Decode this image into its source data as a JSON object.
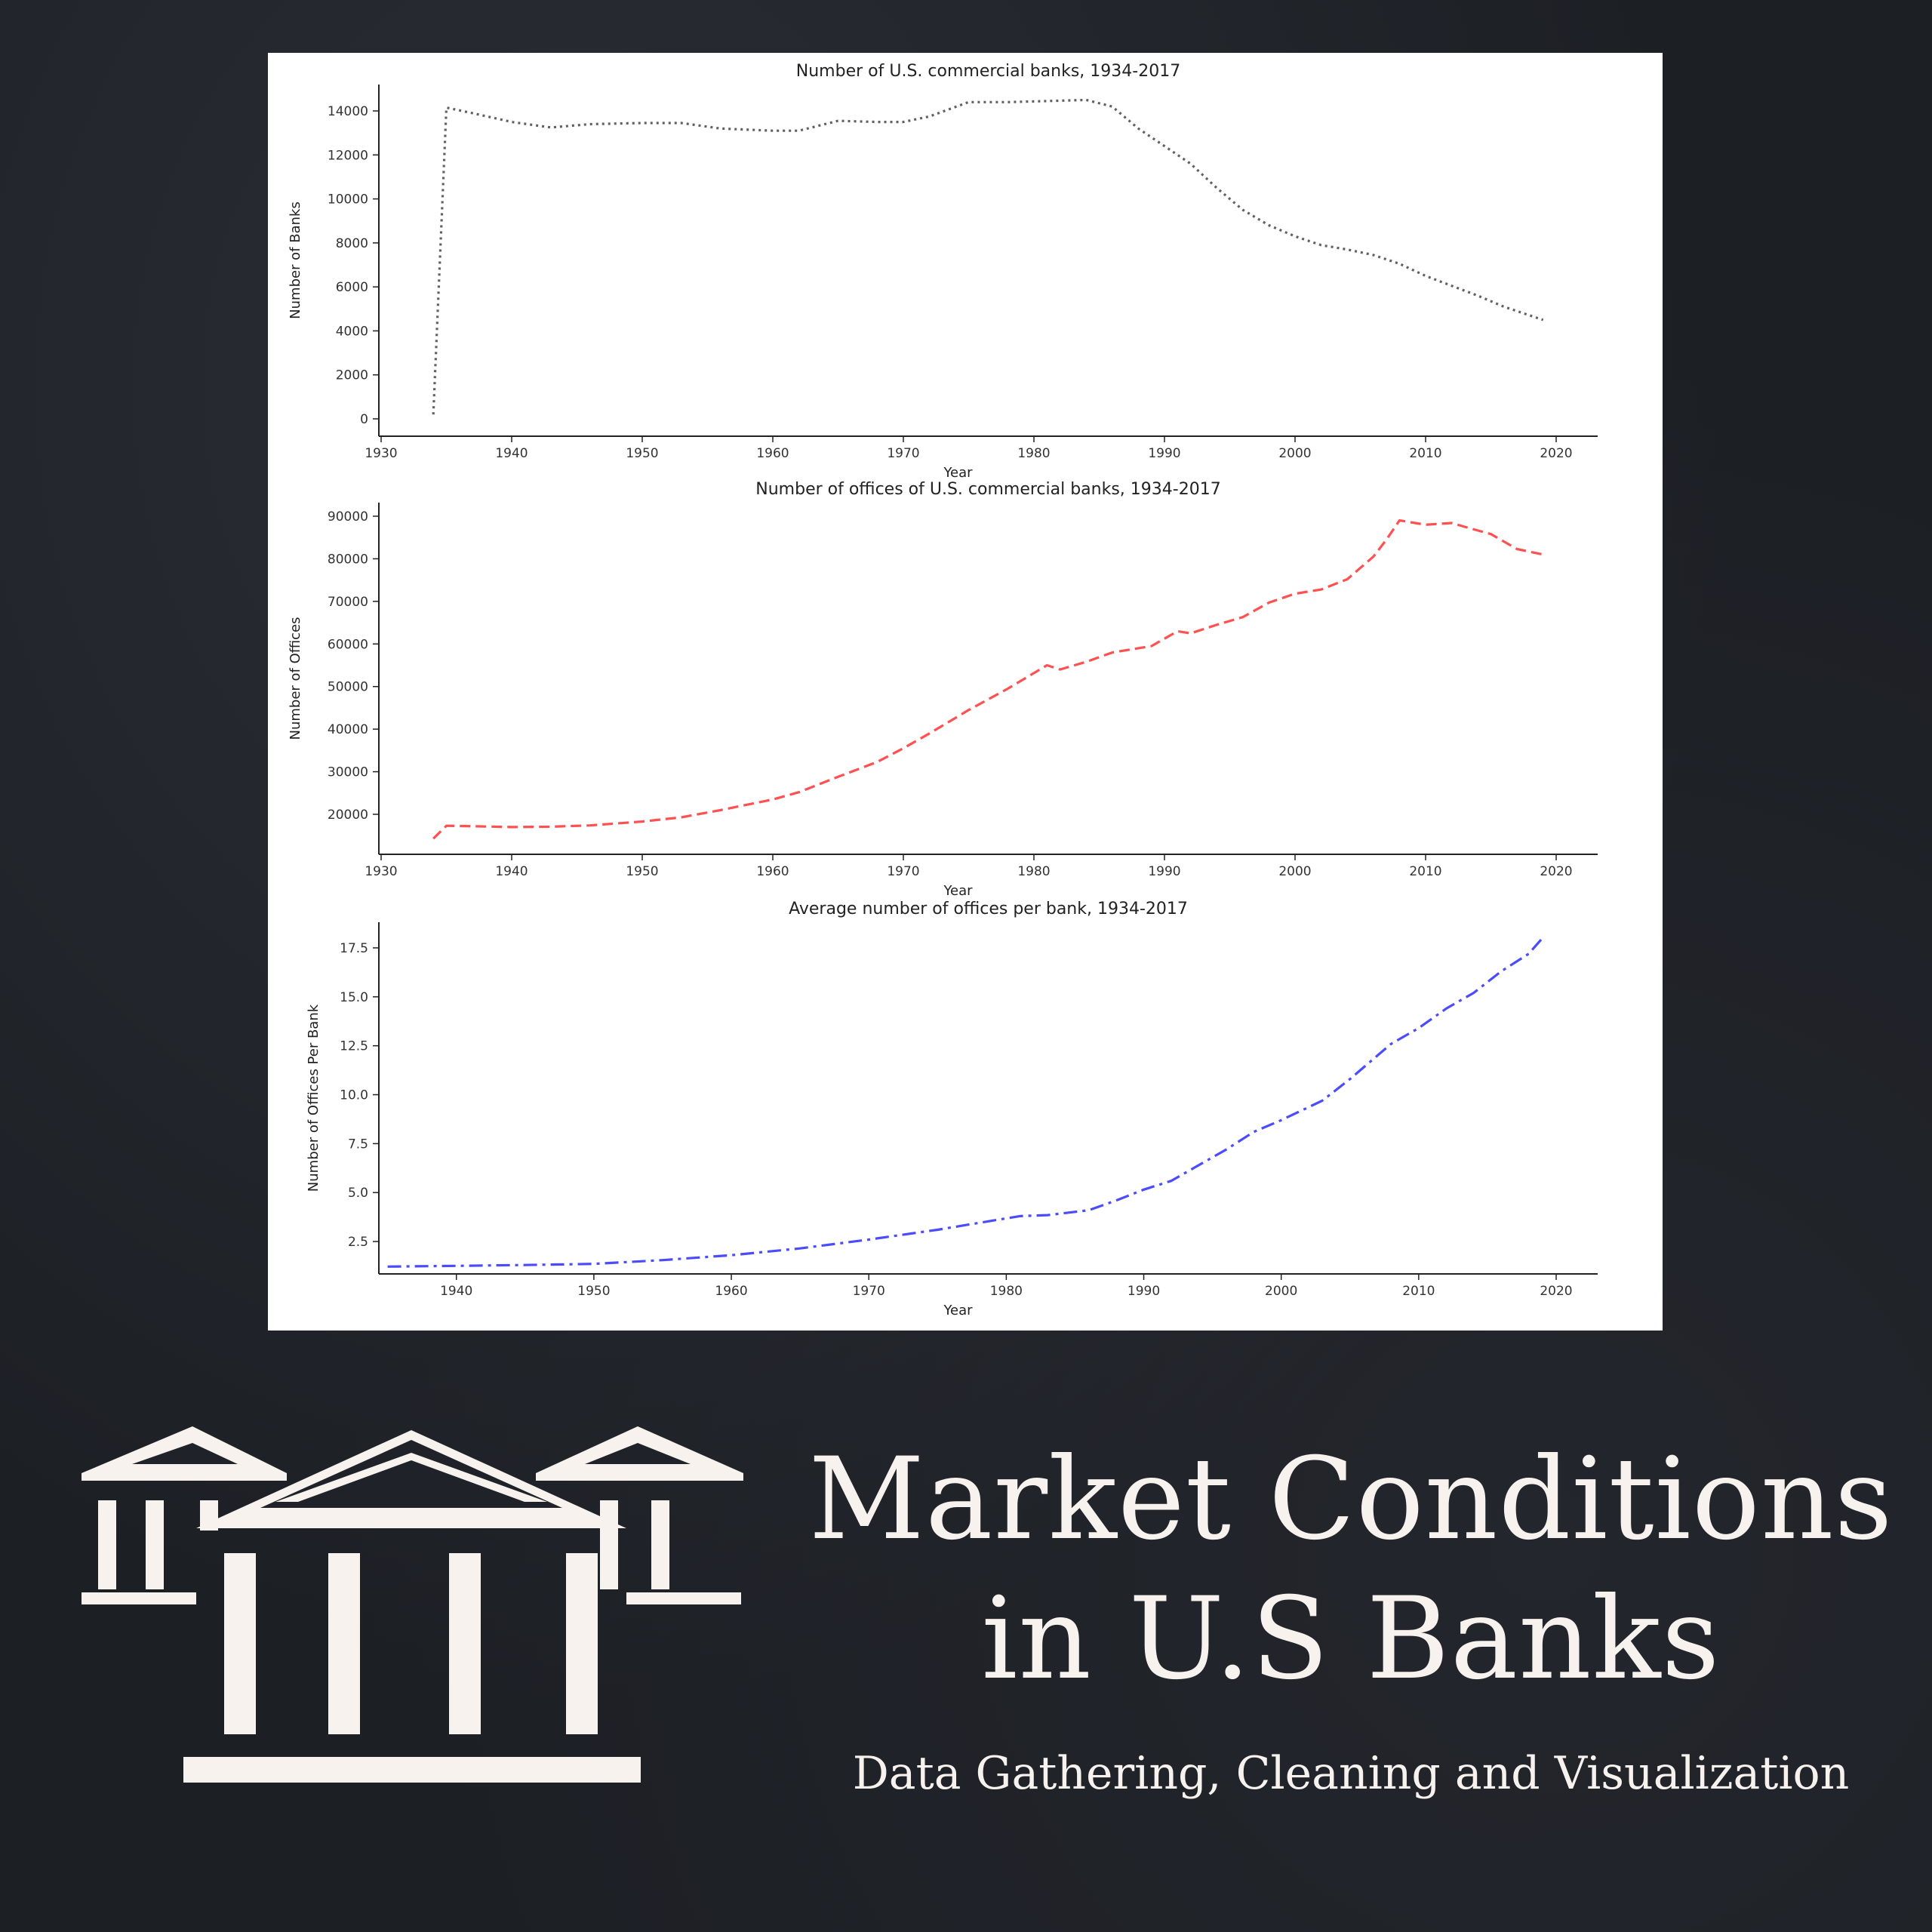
{
  "headline": {
    "title_line1": "Market Conditions",
    "title_line2": "in U.S Banks",
    "subtitle": "Data Gathering, Cleaning and Visualization"
  },
  "icons": {
    "logo": "bank-building-icon"
  },
  "colors": {
    "background": "#1c1f24",
    "text": "#f7f2ee",
    "series_banks": "#444444",
    "series_offices": "#ff3333",
    "series_ratio": "#2b2bff"
  },
  "chart_data": [
    {
      "type": "line",
      "title": "Number of U.S. commercial banks, 1934-2017",
      "xlabel": "Year",
      "ylabel": "Number of Banks",
      "line_style": "dotted",
      "xlim": [
        1930,
        2020
      ],
      "ylim": [
        0,
        14000
      ],
      "xticks": [
        1930,
        1940,
        1950,
        1960,
        1970,
        1980,
        1990,
        2000,
        2010,
        2020
      ],
      "yticks": [
        0,
        2000,
        4000,
        6000,
        8000,
        10000,
        12000,
        14000
      ],
      "points": [
        [
          1934,
          200
        ],
        [
          1935,
          14150
        ],
        [
          1937,
          13900
        ],
        [
          1940,
          13500
        ],
        [
          1943,
          13250
        ],
        [
          1946,
          13400
        ],
        [
          1950,
          13450
        ],
        [
          1953,
          13450
        ],
        [
          1956,
          13200
        ],
        [
          1960,
          13100
        ],
        [
          1962,
          13100
        ],
        [
          1965,
          13550
        ],
        [
          1968,
          13500
        ],
        [
          1970,
          13500
        ],
        [
          1972,
          13750
        ],
        [
          1975,
          14400
        ],
        [
          1978,
          14400
        ],
        [
          1981,
          14450
        ],
        [
          1984,
          14500
        ],
        [
          1986,
          14200
        ],
        [
          1988,
          13200
        ],
        [
          1990,
          12400
        ],
        [
          1992,
          11600
        ],
        [
          1994,
          10500
        ],
        [
          1996,
          9500
        ],
        [
          1998,
          8800
        ],
        [
          2000,
          8300
        ],
        [
          2002,
          7900
        ],
        [
          2004,
          7700
        ],
        [
          2006,
          7450
        ],
        [
          2008,
          7050
        ],
        [
          2010,
          6500
        ],
        [
          2012,
          6050
        ],
        [
          2014,
          5600
        ],
        [
          2016,
          5100
        ],
        [
          2019,
          4500
        ]
      ]
    },
    {
      "type": "line",
      "title": "Number of offices of U.S. commercial banks, 1934-2017",
      "xlabel": "Year",
      "ylabel": "Number of Offices",
      "line_style": "dashed",
      "xlim": [
        1930,
        2020
      ],
      "ylim": [
        20000,
        90000
      ],
      "xticks": [
        1930,
        1940,
        1950,
        1960,
        1970,
        1980,
        1990,
        2000,
        2010,
        2020
      ],
      "yticks": [
        20000,
        30000,
        40000,
        50000,
        60000,
        70000,
        80000,
        90000
      ],
      "points": [
        [
          1934,
          14300
        ],
        [
          1935,
          17300
        ],
        [
          1937,
          17200
        ],
        [
          1940,
          17000
        ],
        [
          1943,
          17100
        ],
        [
          1946,
          17400
        ],
        [
          1950,
          18300
        ],
        [
          1953,
          19300
        ],
        [
          1956,
          21000
        ],
        [
          1960,
          23500
        ],
        [
          1962,
          25200
        ],
        [
          1965,
          28800
        ],
        [
          1968,
          32300
        ],
        [
          1970,
          35500
        ],
        [
          1972,
          39000
        ],
        [
          1975,
          44500
        ],
        [
          1978,
          49500
        ],
        [
          1981,
          55000
        ],
        [
          1982,
          54000
        ],
        [
          1984,
          55800
        ],
        [
          1986,
          58000
        ],
        [
          1989,
          59500
        ],
        [
          1991,
          63000
        ],
        [
          1992,
          62500
        ],
        [
          1994,
          64500
        ],
        [
          1996,
          66300
        ],
        [
          1998,
          69700
        ],
        [
          2000,
          71800
        ],
        [
          2002,
          72800
        ],
        [
          2004,
          75200
        ],
        [
          2006,
          80500
        ],
        [
          2007,
          84500
        ],
        [
          2008,
          89000
        ],
        [
          2010,
          88000
        ],
        [
          2012,
          88400
        ],
        [
          2013,
          87500
        ],
        [
          2015,
          85800
        ],
        [
          2017,
          82300
        ],
        [
          2019,
          81000
        ]
      ]
    },
    {
      "type": "line",
      "title": "Average number of offices per bank, 1934-2017",
      "xlabel": "Year",
      "ylabel": "Number of Offices Per Bank",
      "line_style": "dashdot",
      "xlim": [
        1932,
        2020
      ],
      "ylim": [
        1,
        18
      ],
      "xticks": [
        1940,
        1950,
        1960,
        1970,
        1980,
        1990,
        2000,
        2010,
        2020
      ],
      "yticks": [
        2.5,
        5.0,
        7.5,
        10.0,
        12.5,
        15.0,
        17.5
      ],
      "ytick_labels": [
        "2.5",
        "5.0",
        "7.5",
        "10.0",
        "12.5",
        "15.0",
        "17.5"
      ],
      "points": [
        [
          1935,
          1.22
        ],
        [
          1940,
          1.26
        ],
        [
          1945,
          1.3
        ],
        [
          1950,
          1.36
        ],
        [
          1955,
          1.55
        ],
        [
          1960,
          1.8
        ],
        [
          1965,
          2.15
        ],
        [
          1970,
          2.6
        ],
        [
          1975,
          3.1
        ],
        [
          1978,
          3.45
        ],
        [
          1981,
          3.8
        ],
        [
          1983,
          3.85
        ],
        [
          1986,
          4.1
        ],
        [
          1988,
          4.6
        ],
        [
          1990,
          5.15
        ],
        [
          1992,
          5.6
        ],
        [
          1994,
          6.4
        ],
        [
          1996,
          7.2
        ],
        [
          1998,
          8.1
        ],
        [
          2000,
          8.7
        ],
        [
          2003,
          9.7
        ],
        [
          2005,
          10.8
        ],
        [
          2007,
          12.0
        ],
        [
          2008,
          12.6
        ],
        [
          2010,
          13.4
        ],
        [
          2012,
          14.4
        ],
        [
          2014,
          15.2
        ],
        [
          2016,
          16.3
        ],
        [
          2018,
          17.2
        ],
        [
          2019,
          18.0
        ]
      ]
    }
  ]
}
